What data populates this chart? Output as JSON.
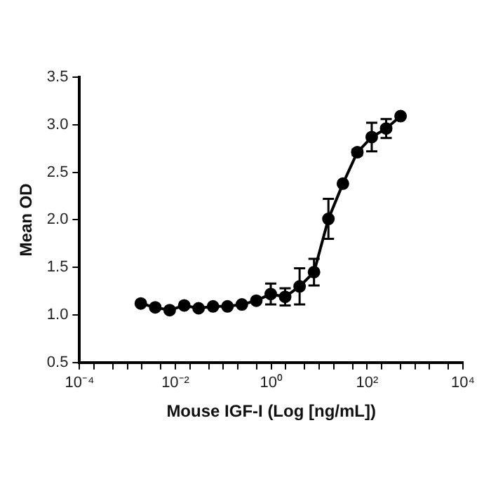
{
  "chart_data": {
    "type": "line",
    "xlabel": "Mouse IGF-I (Log [ng/mL])",
    "ylabel": "Mean OD",
    "log": "x",
    "grid": false,
    "marker": "circle",
    "line_style": "solid",
    "xlim": [
      0.0001,
      10000
    ],
    "xticks": [
      {
        "value": 0.0001,
        "label": "10⁻⁴"
      },
      {
        "value": 0.0002,
        "label": null
      },
      {
        "value": 0.0005,
        "label": null
      },
      {
        "value": 0.001,
        "label": null
      },
      {
        "value": 0.002,
        "label": null
      },
      {
        "value": 0.005,
        "label": null
      },
      {
        "value": 0.01,
        "label": "10⁻²"
      },
      {
        "value": 0.02,
        "label": null
      },
      {
        "value": 0.05,
        "label": null
      },
      {
        "value": 0.1,
        "label": null
      },
      {
        "value": 0.2,
        "label": null
      },
      {
        "value": 0.5,
        "label": null
      },
      {
        "value": 1,
        "label": "10⁰"
      },
      {
        "value": 2,
        "label": null
      },
      {
        "value": 5,
        "label": null
      },
      {
        "value": 10,
        "label": null
      },
      {
        "value": 20,
        "label": null
      },
      {
        "value": 50,
        "label": null
      },
      {
        "value": 100,
        "label": "10²"
      },
      {
        "value": 200,
        "label": null
      },
      {
        "value": 500,
        "label": null
      },
      {
        "value": 1000,
        "label": null
      },
      {
        "value": 2000,
        "label": null
      },
      {
        "value": 5000,
        "label": null
      },
      {
        "value": 10000,
        "label": "10⁴"
      }
    ],
    "ylim": [
      0.5,
      3.5
    ],
    "yticks": [
      {
        "value": 0.5,
        "label": "0.5"
      },
      {
        "value": 1,
        "label": "1.0"
      },
      {
        "value": 1.5,
        "label": "1.5"
      },
      {
        "value": 2,
        "label": "2.0"
      },
      {
        "value": 2.5,
        "label": "2.5"
      },
      {
        "value": 3,
        "label": "3.0"
      },
      {
        "value": 3.5,
        "label": "3.5"
      }
    ],
    "series": [
      {
        "color": "#000000",
        "x": [
          0.0019,
          0.0038,
          0.0076,
          0.0153,
          0.0305,
          0.061,
          0.122,
          0.244,
          0.488,
          0.977,
          1.95,
          3.91,
          7.81,
          15.6,
          31.3,
          62.5,
          125,
          250,
          500
        ],
        "values": [
          1.12,
          1.08,
          1.05,
          1.1,
          1.07,
          1.09,
          1.09,
          1.11,
          1.15,
          1.22,
          1.19,
          1.3,
          1.45,
          2.01,
          2.38,
          2.71,
          2.87,
          2.96,
          3.09
        ],
        "errors": [
          null,
          null,
          null,
          null,
          null,
          null,
          null,
          null,
          null,
          0.11,
          0.09,
          0.19,
          0.14,
          0.21,
          null,
          0.03,
          0.15,
          0.1,
          null
        ]
      }
    ]
  }
}
